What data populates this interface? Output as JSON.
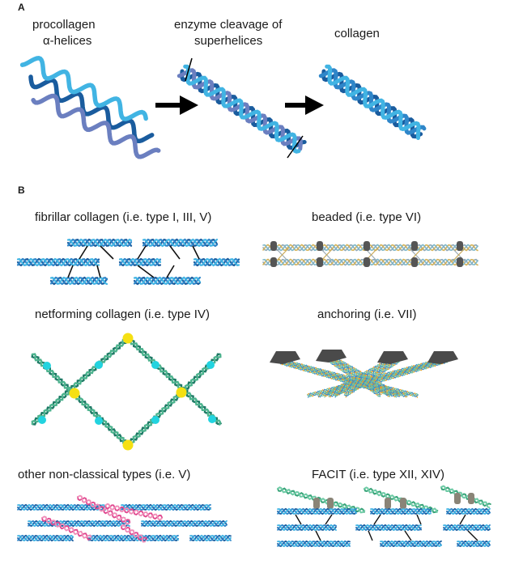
{
  "panels": {
    "a": "A",
    "b": "B"
  },
  "panel_a": {
    "step1_line1": "procollagen",
    "step1_line2": "α-helices",
    "step2_line1": "enzyme cleavage of",
    "step2_line2": "superhelices",
    "step3": "collagen"
  },
  "panel_b": {
    "fibrillar": "fibrillar collagen (i.e. type I, III, V)",
    "beaded": "beaded (i.e. type VI)",
    "netforming": "netforming collagen (i.e. type IV)",
    "anchoring": "anchoring (i.e. VII)",
    "nonclassical": "other non-classical types (i.e. V)",
    "facit": "FACIT (i.e. type XII, XIV)"
  },
  "colors": {
    "helix_dark": "#1a5c9e",
    "helix_mid": "#2f86c9",
    "helix_light": "#41b4e3",
    "helix_purple": "#6b7fc0",
    "node_cyan": "#22d3df",
    "node_yellow": "#f5e013",
    "pink": "#e0488f",
    "green": "#3aa57a",
    "gray_block": "#555555"
  }
}
